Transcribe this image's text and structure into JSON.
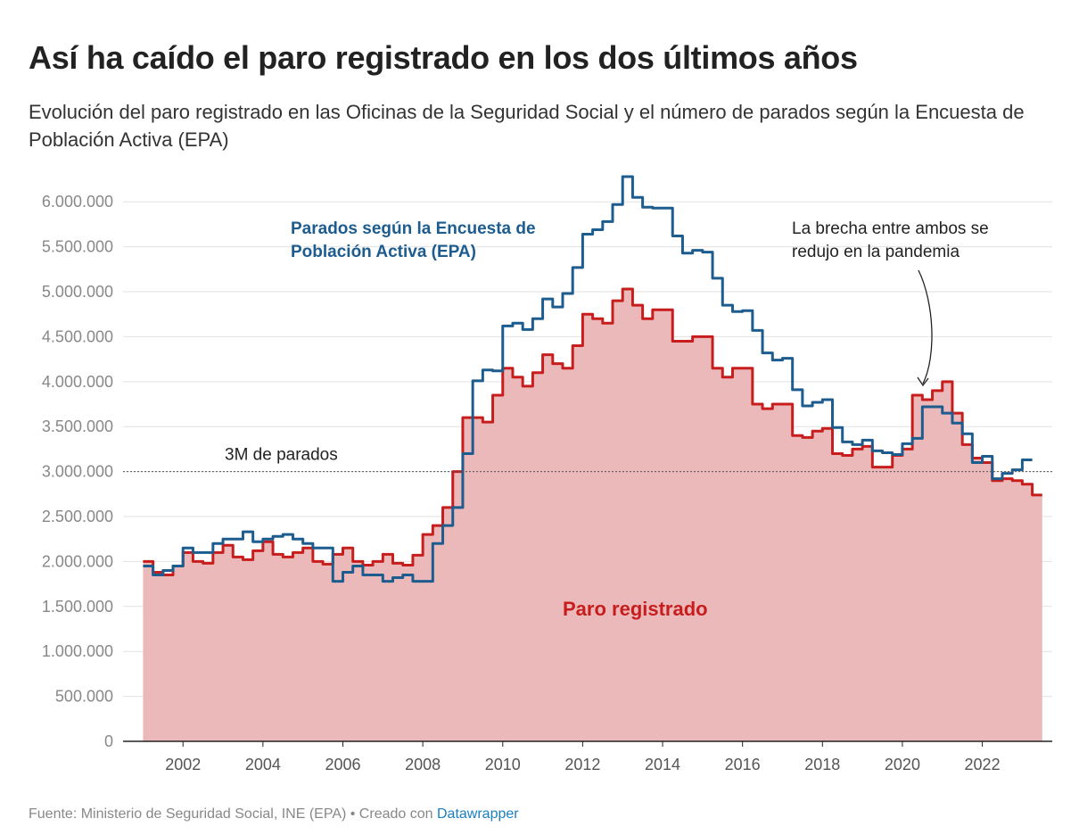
{
  "chart_data": {
    "type": "step-area",
    "title": "Así ha caído el paro registrado en los dos últimos años",
    "subtitle": "Evolución del paro registrado en las Oficinas de la Seguridad Social y el número de parados según la Encuesta de Población Activa (EPA)",
    "x": [
      2001,
      2001.25,
      2001.5,
      2001.75,
      2002,
      2002.25,
      2002.5,
      2002.75,
      2003,
      2003.25,
      2003.5,
      2003.75,
      2004,
      2004.25,
      2004.5,
      2004.75,
      2005,
      2005.25,
      2005.5,
      2005.75,
      2006,
      2006.25,
      2006.5,
      2006.75,
      2007,
      2007.25,
      2007.5,
      2007.75,
      2008,
      2008.25,
      2008.5,
      2008.75,
      2009,
      2009.25,
      2009.5,
      2009.75,
      2010,
      2010.25,
      2010.5,
      2010.75,
      2011,
      2011.25,
      2011.5,
      2011.75,
      2012,
      2012.25,
      2012.5,
      2012.75,
      2013,
      2013.25,
      2013.5,
      2013.75,
      2014,
      2014.25,
      2014.5,
      2014.75,
      2015,
      2015.25,
      2015.5,
      2015.75,
      2016,
      2016.25,
      2016.5,
      2016.75,
      2017,
      2017.25,
      2017.5,
      2017.75,
      2018,
      2018.25,
      2018.5,
      2018.75,
      2019,
      2019.25,
      2019.5,
      2019.75,
      2020,
      2020.25,
      2020.5,
      2020.75,
      2021,
      2021.25,
      2021.5,
      2021.75,
      2022,
      2022.25,
      2022.5,
      2022.75,
      2023,
      2023.25
    ],
    "series": [
      {
        "name": "Paro registrado",
        "color": "#c71e1d",
        "fill": "#ebb9ba",
        "area": true,
        "values": [
          2000000,
          1880000,
          1850000,
          1950000,
          2100000,
          2000000,
          1980000,
          2100000,
          2180000,
          2050000,
          2020000,
          2120000,
          2220000,
          2080000,
          2050000,
          2100000,
          2150000,
          2000000,
          1970000,
          2080000,
          2150000,
          2000000,
          1960000,
          2000000,
          2080000,
          1980000,
          1960000,
          2070000,
          2300000,
          2400000,
          2600000,
          3000000,
          3600000,
          3600000,
          3550000,
          3850000,
          4150000,
          4050000,
          3950000,
          4100000,
          4300000,
          4200000,
          4150000,
          4400000,
          4750000,
          4700000,
          4650000,
          4900000,
          5030000,
          4850000,
          4700000,
          4800000,
          4800000,
          4450000,
          4450000,
          4500000,
          4500000,
          4150000,
          4050000,
          4150000,
          4150000,
          3750000,
          3700000,
          3750000,
          3750000,
          3400000,
          3380000,
          3450000,
          3480000,
          3200000,
          3180000,
          3250000,
          3280000,
          3050000,
          3050000,
          3180000,
          3250000,
          3850000,
          3800000,
          3900000,
          4000000,
          3650000,
          3300000,
          3150000,
          3100000,
          2900000,
          2920000,
          2900000,
          2860000,
          2740000
        ]
      },
      {
        "name": "Parados según la Encuesta de Población Activa (EPA)",
        "color": "#1d5c8f",
        "area": false,
        "values": [
          1950000,
          1850000,
          1900000,
          1950000,
          2150000,
          2100000,
          2100000,
          2200000,
          2250000,
          2250000,
          2330000,
          2220000,
          2250000,
          2280000,
          2300000,
          2250000,
          2200000,
          2150000,
          2150000,
          1780000,
          1880000,
          1950000,
          1850000,
          1850000,
          1780000,
          1820000,
          1850000,
          1780000,
          1780000,
          2200000,
          2400000,
          2600000,
          3200000,
          4010000,
          4130000,
          4120000,
          4620000,
          4650000,
          4580000,
          4700000,
          4920000,
          4830000,
          4980000,
          5270000,
          5640000,
          5690000,
          5780000,
          5970000,
          6280000,
          6050000,
          5940000,
          5930000,
          5930000,
          5620000,
          5430000,
          5460000,
          5440000,
          5150000,
          4850000,
          4780000,
          4790000,
          4570000,
          4320000,
          4240000,
          4260000,
          3910000,
          3730000,
          3770000,
          3800000,
          3490000,
          3330000,
          3300000,
          3350000,
          3230000,
          3210000,
          3190000,
          3310000,
          3370000,
          3720000,
          3720000,
          3650000,
          3540000,
          3420000,
          3100000,
          3170000,
          2920000,
          2980000,
          3020000,
          3130000,
          null
        ]
      }
    ],
    "xlim": [
      2000.5,
      2023.75
    ],
    "xticks": [
      2002,
      2004,
      2006,
      2008,
      2010,
      2012,
      2014,
      2016,
      2018,
      2020,
      2022
    ],
    "ylim": [
      0,
      6300000
    ],
    "yticks": [
      0,
      {
        "value": 500000,
        "label": "500.000"
      },
      {
        "value": 1000000,
        "label": "1.000.000"
      },
      {
        "value": 1500000,
        "label": "1.500.000"
      },
      {
        "value": 2000000,
        "label": "2.000.000"
      },
      {
        "value": 2500000,
        "label": "2.500.000"
      },
      {
        "value": 3000000,
        "label": "3.000.000"
      },
      {
        "value": 3500000,
        "label": "3.500.000"
      },
      {
        "value": 4000000,
        "label": "4.000.000"
      },
      {
        "value": 4500000,
        "label": "4.500.000"
      },
      {
        "value": 5000000,
        "label": "5.000.000"
      },
      {
        "value": 5500000,
        "label": "5.500.000"
      },
      {
        "value": 6000000,
        "label": "6.000.000"
      }
    ],
    "grid": true,
    "reference_line": {
      "value": 3000000,
      "label": "3M de parados"
    },
    "annotation": "La brecha entre ambos se redujo en la pandemia",
    "source": "Fuente: Ministerio de Seguridad Social, INE (EPA) • Creado con",
    "credit": "Datawrapper"
  }
}
